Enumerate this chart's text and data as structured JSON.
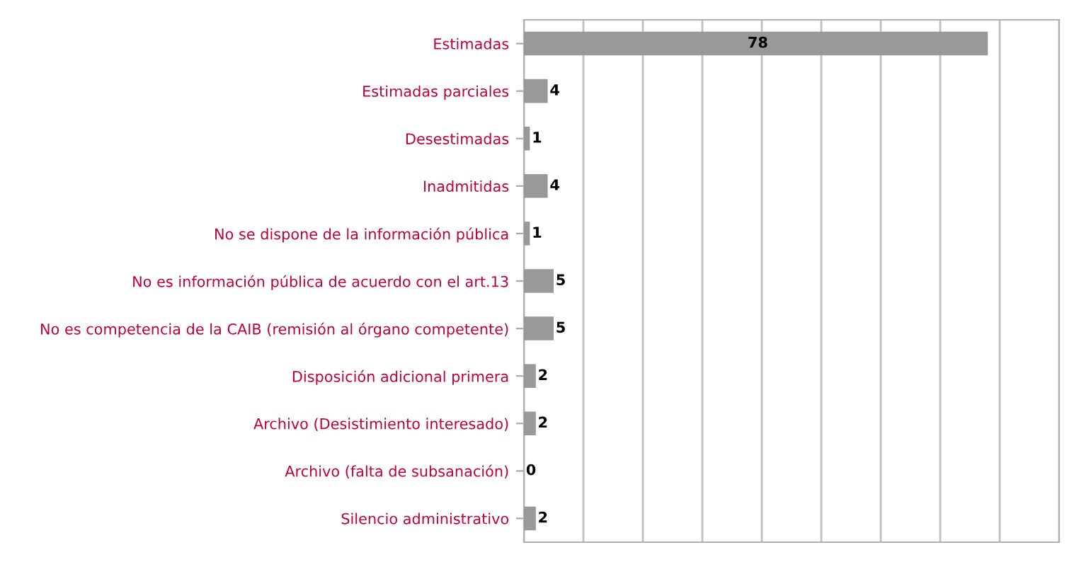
{
  "chart_data": {
    "type": "bar",
    "orientation": "horizontal",
    "categories": [
      "Estimadas",
      "Estimadas parciales",
      "Desestimadas",
      "Inadmitidas",
      "No se dispone de la información pública",
      "No es información pública de acuerdo con el art.13",
      "No es competencia de la CAIB (remisión al órgano competente)",
      "Disposición adicional primera",
      "Archivo (Desistimiento interesado)",
      "Archivo (falta de subsanación)",
      "Silencio administrativo"
    ],
    "values": [
      78,
      4,
      1,
      4,
      1,
      5,
      5,
      2,
      2,
      0,
      2
    ],
    "color": "#999999",
    "xlim": [
      0,
      90
    ],
    "xticks": [
      {
        "value": 0,
        "label": null
      },
      {
        "value": 10,
        "label": null
      },
      {
        "value": 20,
        "label": null
      },
      {
        "value": 30,
        "label": null
      },
      {
        "value": 40,
        "label": null
      },
      {
        "value": 50,
        "label": null
      },
      {
        "value": 60,
        "label": null
      },
      {
        "value": 70,
        "label": null
      },
      {
        "value": 80,
        "label": null
      },
      {
        "value": 90,
        "label": null
      }
    ],
    "tick_labels": "y",
    "grid": "x",
    "data_labels": true
  }
}
